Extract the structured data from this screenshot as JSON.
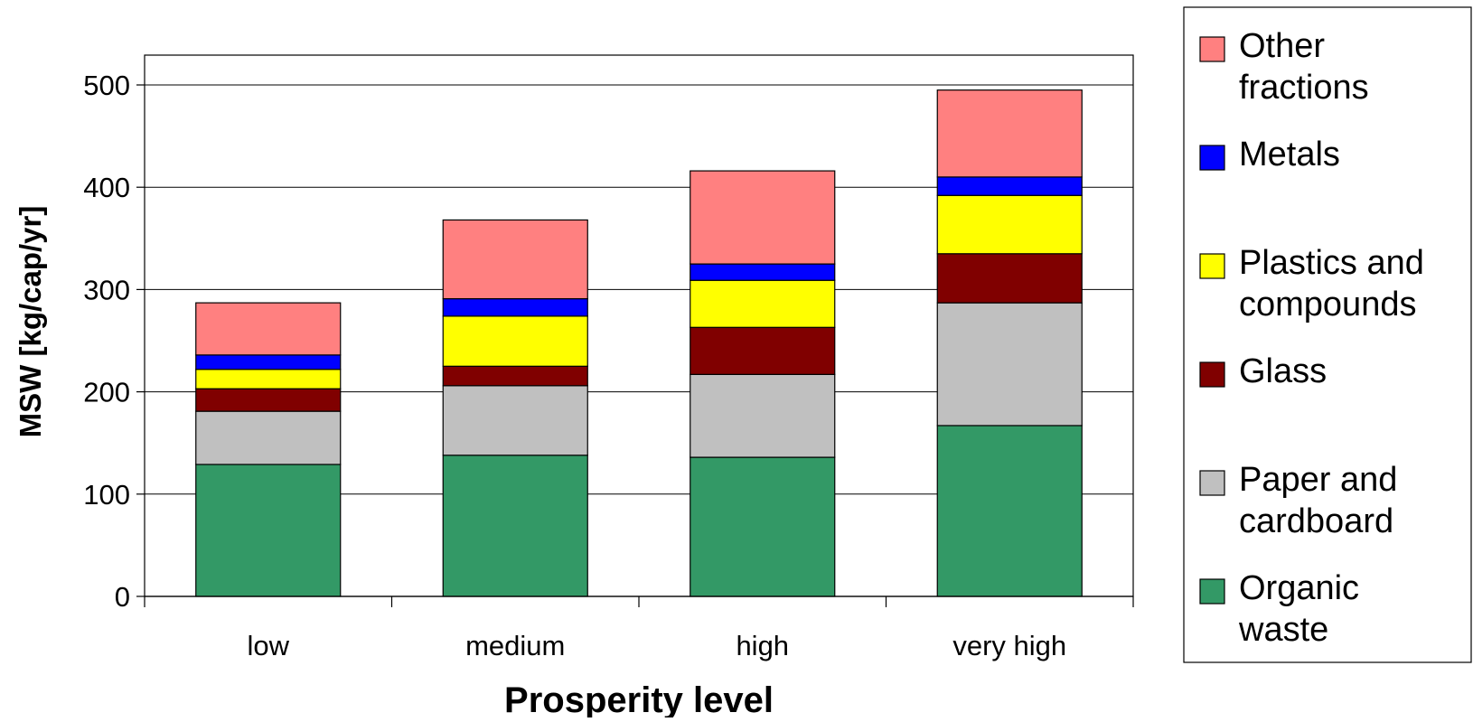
{
  "chart_data": {
    "type": "bar",
    "stacked": true,
    "title": "",
    "xlabel": "Prosperity level",
    "ylabel": "MSW [kg/cap/yr]",
    "ylim": [
      0,
      500
    ],
    "yticks": [
      0,
      100,
      200,
      300,
      400,
      500
    ],
    "grid": true,
    "legend_position": "right",
    "categories": [
      "low",
      "medium",
      "high",
      "very high"
    ],
    "series": [
      {
        "name": "Organic waste",
        "color": "#339966",
        "values": [
          129,
          138,
          136,
          167
        ]
      },
      {
        "name": "Paper and cardboard",
        "color": "#C0C0C0",
        "values": [
          52,
          68,
          81,
          120
        ]
      },
      {
        "name": "Glass",
        "color": "#800000",
        "values": [
          22,
          19,
          46,
          48
        ]
      },
      {
        "name": "Plastics and compounds",
        "color": "#FFFF00",
        "values": [
          19,
          49,
          46,
          57
        ]
      },
      {
        "name": "Metals",
        "color": "#0000FF",
        "values": [
          14,
          17,
          16,
          18
        ]
      },
      {
        "name": "Other fractions",
        "color": "#FF8080",
        "values": [
          51,
          77,
          91,
          85
        ]
      }
    ]
  }
}
